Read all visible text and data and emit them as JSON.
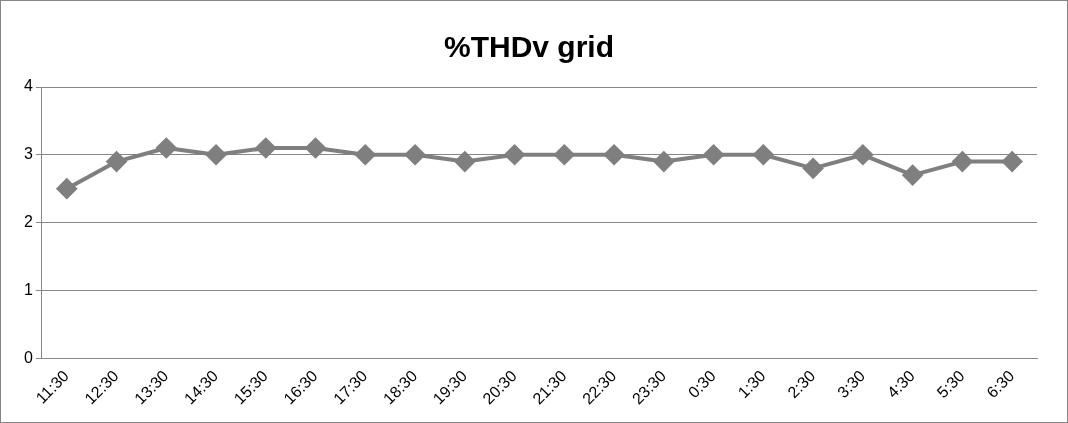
{
  "chart_data": {
    "type": "line",
    "title": "%THDv grid",
    "categories": [
      "11:30",
      "12:30",
      "13:30",
      "14:30",
      "15:30",
      "16:30",
      "17:30",
      "18:30",
      "19:30",
      "20:30",
      "21:30",
      "22:30",
      "23:30",
      "0:30",
      "1:30",
      "2:30",
      "3:30",
      "4:30",
      "5:30",
      "6:30"
    ],
    "series": [
      {
        "color": "#7f7f7f",
        "values": [
          2.5,
          2.9,
          3.1,
          3.0,
          3.1,
          3.1,
          3.0,
          3.0,
          2.9,
          3.0,
          3.0,
          3.0,
          2.9,
          3.0,
          3.0,
          2.8,
          3.0,
          2.7,
          2.9,
          2.9
        ]
      }
    ],
    "ylim": [
      0,
      4
    ],
    "yticks": [
      0,
      1,
      2,
      3,
      4
    ],
    "grid": "y",
    "legend": false,
    "marker": "diamond",
    "line_style": "solid"
  }
}
